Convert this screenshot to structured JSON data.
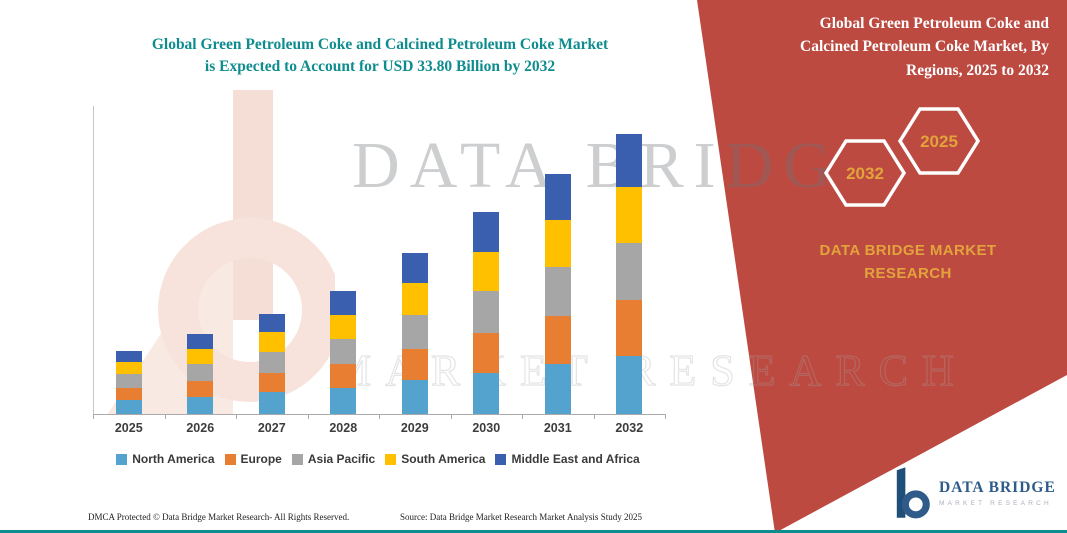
{
  "header": {
    "left_title": "Global Green Petroleum Coke and Calcined Petroleum Coke Market is Expected to Account for USD 33.80 Billion by 2032",
    "right_title": "Global Green Petroleum Coke and Calcined Petroleum Coke Market, By Regions, 2025 to 2032"
  },
  "right_panel": {
    "hexagons": [
      {
        "label": "2032"
      },
      {
        "label": "2025"
      }
    ],
    "brand_text": "DATA BRIDGE MARKET RESEARCH"
  },
  "watermark": {
    "primary": "DATA BRIDGE",
    "secondary": "MARKET RESEARCH"
  },
  "logo": {
    "name": "DATA BRIDGE",
    "subtitle": "MARKET RESEARCH"
  },
  "footer": {
    "dmca": "DMCA Protected © Data Bridge Market Research-  All Rights Reserved.",
    "source": "Source: Data Bridge Market Research  Market Analysis Study 2025"
  },
  "colors": {
    "panel_red": "#BC4A41",
    "title_teal": "#0E8C8E",
    "gold_accent": "#E2A33C",
    "logo_blue": "#2E5B8A",
    "line_teal": "#0E8C8E"
  },
  "chart_data": {
    "type": "bar",
    "stacked": true,
    "title": "Global Green Petroleum Coke and Calcined Petroleum Coke Market is Expected to Account for USD 33.80 Billion by 2032",
    "unit": "USD Billion",
    "categories": [
      "2025",
      "2026",
      "2027",
      "2028",
      "2029",
      "2030",
      "2031",
      "2032"
    ],
    "series": [
      {
        "name": "North America",
        "color": "#54A2CE",
        "values": [
          1.7,
          2.1,
          2.6,
          3.1,
          4.1,
          5.0,
          6.0,
          7.0
        ]
      },
      {
        "name": "Europe",
        "color": "#E87E31",
        "values": [
          1.5,
          1.9,
          2.4,
          2.9,
          3.8,
          4.8,
          5.8,
          6.8
        ]
      },
      {
        "name": "Asia Pacific",
        "color": "#A6A6A6",
        "values": [
          1.6,
          2.0,
          2.5,
          3.0,
          4.0,
          5.0,
          5.9,
          6.9
        ]
      },
      {
        "name": "South America",
        "color": "#FFC000",
        "values": [
          1.5,
          1.9,
          2.4,
          2.9,
          3.9,
          4.8,
          5.7,
          6.7
        ]
      },
      {
        "name": "Middle East and Africa",
        "color": "#3A5FAE",
        "values": [
          1.3,
          1.8,
          2.2,
          2.9,
          3.6,
          4.8,
          5.6,
          6.4
        ]
      }
    ],
    "totals": [
      7.6,
      9.7,
      12.1,
      14.8,
      19.4,
      24.4,
      29.0,
      33.8
    ],
    "ylim": [
      0,
      36
    ],
    "grid": false,
    "legend_position": "bottom",
    "xlabel": "",
    "ylabel": ""
  }
}
